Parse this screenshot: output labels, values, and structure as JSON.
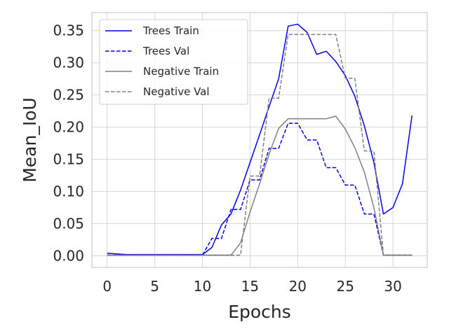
{
  "chart_data": {
    "type": "line",
    "title": "",
    "xlabel": "Epochs",
    "ylabel": "Mean_IoU",
    "xlim": [
      -1.6,
      33.6
    ],
    "ylim": [
      -0.018,
      0.378
    ],
    "xticks": [
      0,
      5,
      10,
      15,
      20,
      25,
      30
    ],
    "yticks": [
      0.0,
      0.05,
      0.1,
      0.15,
      0.2,
      0.25,
      0.3,
      0.35
    ],
    "ytick_labels": [
      "0.00",
      "0.05",
      "0.10",
      "0.15",
      "0.20",
      "0.25",
      "0.30",
      "0.35"
    ],
    "grid": true,
    "legend_position": "top-left",
    "x": [
      0,
      1,
      2,
      3,
      4,
      5,
      6,
      7,
      8,
      9,
      10,
      11,
      12,
      13,
      14,
      15,
      16,
      17,
      18,
      19,
      20,
      21,
      22,
      23,
      24,
      25,
      26,
      27,
      28,
      29,
      30,
      31,
      32
    ],
    "series": [
      {
        "name": "Trees Train",
        "color": "#0000ee",
        "dash": "solid",
        "values": [
          0.004,
          0.003,
          0.002,
          0.002,
          0.002,
          0.002,
          0.002,
          0.002,
          0.002,
          0.002,
          0.002,
          0.013,
          0.048,
          0.065,
          0.102,
          0.145,
          0.188,
          0.232,
          0.275,
          0.357,
          0.36,
          0.347,
          0.313,
          0.318,
          0.302,
          0.28,
          0.248,
          0.202,
          0.145,
          0.065,
          0.075,
          0.112,
          0.218
        ]
      },
      {
        "name": "Trees Val",
        "color": "#0000ee",
        "dash": "dashed",
        "values": [
          0.001,
          0.001,
          0.001,
          0.001,
          0.001,
          0.001,
          0.001,
          0.001,
          0.001,
          0.001,
          0.001,
          0.027,
          0.027,
          0.072,
          0.072,
          0.118,
          0.118,
          0.167,
          0.167,
          0.206,
          0.206,
          0.18,
          0.18,
          0.137,
          0.137,
          0.11,
          0.11,
          0.065,
          0.065,
          0.001,
          0.001,
          0.001,
          0.001
        ]
      },
      {
        "name": "Negative Train",
        "color": "#808080",
        "dash": "solid",
        "values": [
          0.001,
          0.001,
          0.001,
          0.001,
          0.001,
          0.001,
          0.001,
          0.001,
          0.001,
          0.001,
          0.001,
          0.001,
          0.001,
          0.001,
          0.02,
          0.068,
          0.112,
          0.158,
          0.198,
          0.213,
          0.213,
          0.213,
          0.213,
          0.213,
          0.217,
          0.197,
          0.168,
          0.13,
          0.075,
          0.001,
          0.001,
          0.001,
          0.001
        ]
      },
      {
        "name": "Negative Val",
        "color": "#808080",
        "dash": "dashed",
        "values": [
          0.001,
          0.001,
          0.001,
          0.001,
          0.001,
          0.001,
          0.001,
          0.001,
          0.001,
          0.001,
          0.001,
          0.001,
          0.001,
          0.001,
          0.001,
          0.124,
          0.124,
          0.245,
          0.245,
          0.344,
          0.344,
          0.344,
          0.344,
          0.344,
          0.344,
          0.276,
          0.276,
          0.163,
          0.163,
          0.001,
          0.001,
          0.001,
          0.001
        ]
      }
    ]
  }
}
